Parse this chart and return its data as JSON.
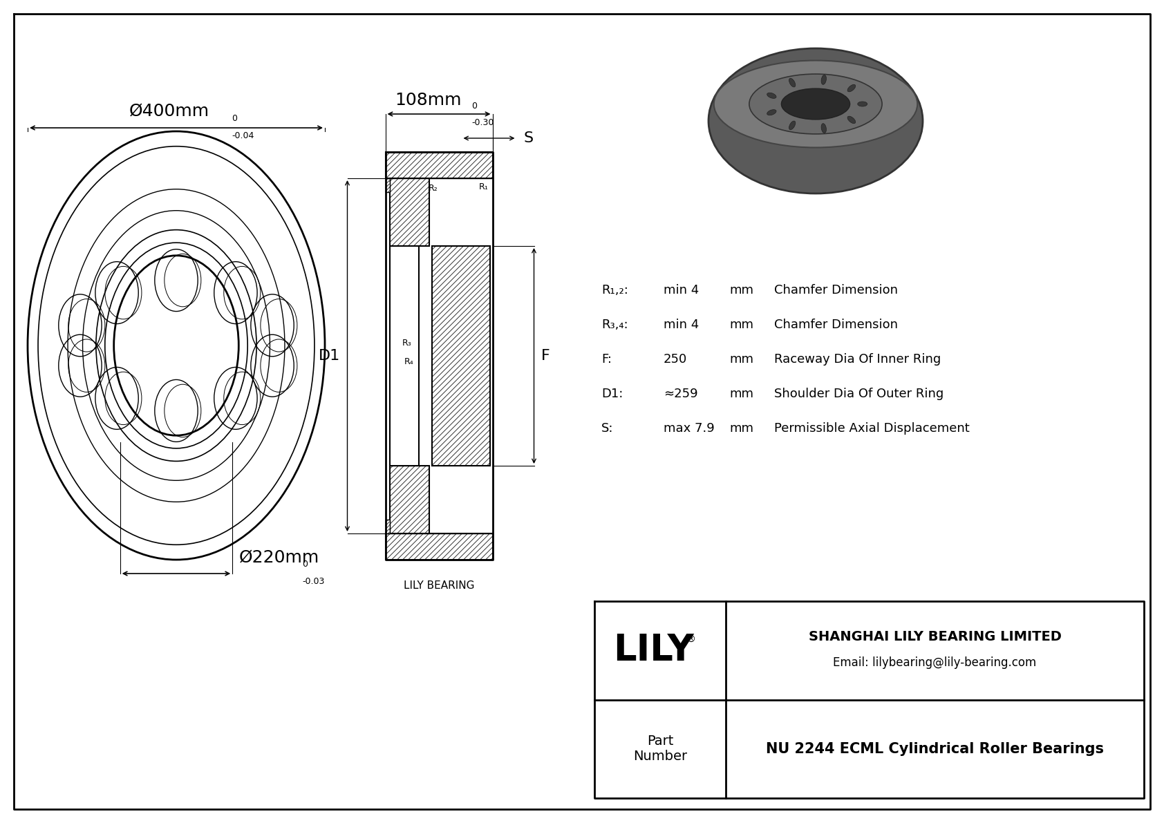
{
  "bg_color": "#ffffff",
  "line_color": "#000000",
  "text_color": "#000000",
  "brand": "LILY",
  "company_name": "SHANGHAI LILY BEARING LIMITED",
  "email": "Email: lilybearing@lily-bearing.com",
  "part_label": "Part\nNumber",
  "part_number": "NU 2244 ECML Cylindrical Roller Bearings",
  "lily_bearing_label": "LILY BEARING",
  "dim_outer": "Ø400mm",
  "dim_outer_sup": "0",
  "dim_outer_sub": "-0.04",
  "dim_inner": "Ø220mm",
  "dim_inner_sup": "0",
  "dim_inner_sub": "-0.03",
  "dim_width": "108mm",
  "dim_width_sup": "0",
  "dim_width_sub": "-0.30",
  "label_S": "S",
  "label_D1": "D1",
  "label_F": "F",
  "label_R1": "R₁",
  "label_R2": "R₂",
  "label_R3": "R₃",
  "label_R4": "R₄",
  "spec_rows": [
    {
      "label": "R₁,₂:",
      "value": "min 4",
      "unit": "mm",
      "desc": "Chamfer Dimension"
    },
    {
      "label": "R₃,₄:",
      "value": "min 4",
      "unit": "mm",
      "desc": "Chamfer Dimension"
    },
    {
      "label": "F:",
      "value": "250",
      "unit": "mm",
      "desc": "Raceway Dia Of Inner Ring"
    },
    {
      "label": "D1:",
      "value": "≈259",
      "unit": "mm",
      "desc": "Shoulder Dia Of Outer Ring"
    },
    {
      "label": "S:",
      "value": "max 7.9",
      "unit": "mm",
      "desc": "Permissible Axial Displacement"
    }
  ]
}
